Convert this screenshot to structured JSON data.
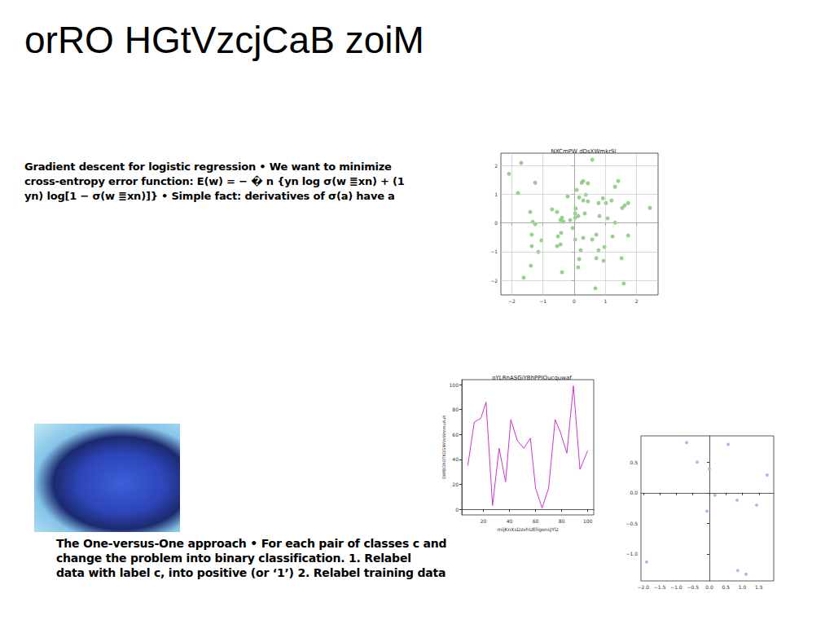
{
  "title": "orRO HGtVzcjCaB zoiM",
  "text_blocks": [
    {
      "lines": [
        "Gradient descent for logistic regression • We want to minimize",
        "cross-entropy error function: E(w) = − � n {yn log σ(w ≣xn) + (1",
        "yn) log[1 − σ(w ≣xn)]} • Simple fact: derivatives of σ(a) have a"
      ]
    },
    {
      "lines": [
        "The One-versus-One approach • For each pair of classes c and",
        "change the problem into binary classification. 1. Relabel",
        "data with label c, into positive (or ‘1’) 2. Relabel training data"
      ]
    }
  ],
  "chart_data": [
    {
      "type": "scatter",
      "title": "NXCmPW dDsXWmkrSl",
      "color": "#86c97a",
      "marker": "o",
      "grid": true,
      "x": [
        -2.09,
        -1.7,
        -1.8,
        -1.25,
        -1.41,
        -1.33,
        -1.25,
        -1.36,
        -1.05,
        -1.36,
        -1.15,
        -1.39,
        -1.62,
        -0.71,
        -0.55,
        -0.44,
        -0.39,
        -0.34,
        -0.52,
        -0.42,
        -0.55,
        -0.44,
        -0.39,
        -0.21,
        -0.13,
        -0.05,
        0.03,
        0.03,
        0.13,
        0.05,
        0.08,
        0.16,
        0.24,
        0.29,
        0.37,
        0.44,
        0.29,
        0.44,
        0.58,
        0.34,
        0.03,
        0.29,
        0.58,
        0.21,
        0.16,
        0.13,
        0.71,
        0.78,
        0.71,
        0.68,
        0.78,
        0.81,
        0.92,
        1.02,
        1.07,
        0.97,
        0.94,
        1.23,
        1.31,
        1.41,
        1.31,
        1.54,
        1.62,
        1.73,
        1.52,
        1.59,
        1.73,
        2.43,
        1.2
      ],
      "values": [
        1.71,
        2.09,
        1.04,
        1.4,
        0.38,
        0.04,
        -0.04,
        -0.41,
        -0.61,
        -0.81,
        -1.01,
        -1.49,
        -1.91,
        0.47,
        0.38,
        0.1,
        0.18,
        0.04,
        -0.47,
        -0.35,
        -0.81,
        -0.75,
        -1.72,
        0.92,
        0.1,
        -0.18,
        0.33,
        0.18,
        0.24,
        0.5,
        1.15,
        0.89,
        1.4,
        1.46,
        0.98,
        1.38,
        0.78,
        0.75,
        2.2,
        0.33,
        -0.58,
        -0.52,
        -0.58,
        -0.95,
        -1.26,
        -1.55,
        -0.41,
        -0.95,
        -1.23,
        -2.28,
        0.69,
        0.24,
        0.86,
        0.69,
        0.16,
        -0.84,
        -1.32,
        -0.47,
        1.26,
        1.46,
        0.01,
        0.52,
        0.61,
        0.69,
        -1.23,
        -2.11,
        -0.44,
        0.52,
        0.78
      ],
      "xlim": [
        -2.35,
        2.69
      ],
      "ylim": [
        -2.51,
        2.43
      ],
      "xticks": [
        {
          "value": -2,
          "label": "−2"
        },
        {
          "value": -1,
          "label": "−1"
        },
        0,
        1,
        2
      ],
      "yticks": [
        {
          "value": -2,
          "label": "−2"
        },
        {
          "value": -1,
          "label": "−1"
        },
        0,
        1,
        2
      ]
    },
    {
      "type": "line",
      "title": "oYLRnASGiYBhPPIOucquwaf",
      "x_label": "mijKnXsDzvhUEligonsJYD",
      "y_label": "OWfBOhOTKOGIWVeWmmuAuh",
      "color": "#cc33cc",
      "line_style": "solid",
      "grid": false,
      "x": [
        8,
        13,
        18,
        22,
        27,
        32,
        37,
        41,
        46,
        51,
        56,
        60,
        65,
        70,
        75,
        79,
        84,
        89,
        94,
        100
      ],
      "values": [
        35,
        70,
        73,
        86,
        3,
        49,
        22,
        72,
        55,
        49,
        57,
        17,
        1,
        17,
        72,
        62,
        45,
        99,
        32,
        47
      ],
      "xlim": [
        3.4,
        104.6
      ],
      "ylim": [
        -4.5,
        104
      ],
      "xticks": [
        20,
        40,
        60,
        80,
        100
      ],
      "yticks": [
        0,
        20,
        40,
        60,
        80,
        100
      ]
    },
    {
      "type": "scatter",
      "color": "#aaa8e6",
      "marker": "o",
      "grid": false,
      "x": [
        -1.9,
        -0.69,
        -0.37,
        0.0,
        0.17,
        -0.07,
        0.57,
        0.84,
        0.86,
        1.11,
        1.43,
        1.75
      ],
      "values": [
        -1.13,
        0.82,
        0.5,
        0.39,
        -0.04,
        -0.3,
        0.79,
        -0.12,
        -1.27,
        -1.33,
        -0.2,
        0.29
      ],
      "xlim": [
        -2.07,
        1.95
      ],
      "ylim": [
        -1.44,
        0.93
      ],
      "xticks": [
        {
          "value": -2,
          "label": "−2.0"
        },
        {
          "value": -1.5,
          "label": "−1.5"
        },
        {
          "value": -1,
          "label": "−1.0"
        },
        {
          "value": -0.5,
          "label": "−0.5"
        },
        {
          "value": 0,
          "label": "0.0"
        },
        0.5,
        {
          "value": 1,
          "label": "1.0"
        },
        1.5
      ],
      "yticks": [
        {
          "value": -1,
          "label": "−1.0"
        },
        {
          "value": -0.5,
          "label": "−0.5"
        },
        {
          "value": 0,
          "label": "0.0"
        },
        0.5
      ]
    }
  ]
}
